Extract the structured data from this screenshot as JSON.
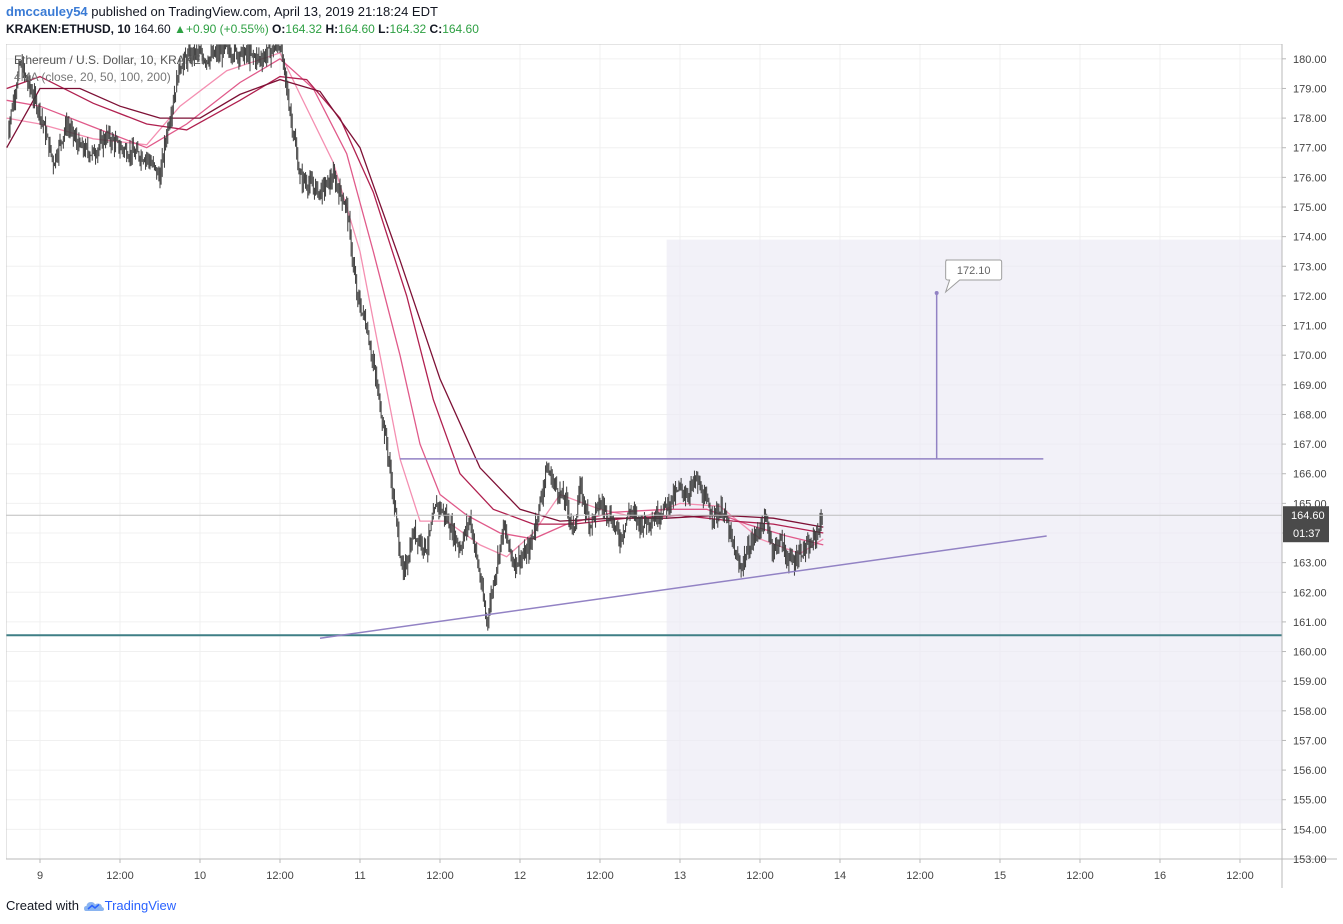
{
  "header": {
    "author": "dmccauley54",
    "published": " published on TradingView.com, April 13, 2019 21:18:24 EDT"
  },
  "ohlc": {
    "symbol": "KRAKEN:ETHUSD, 10",
    "last": "164.60",
    "change": "+0.90 (+0.55%)",
    "o_label": "O:",
    "o": "164.32",
    "h_label": "H:",
    "h": "164.60",
    "l_label": "L:",
    "l": "164.32",
    "c_label": "C:",
    "c": "164.60"
  },
  "legend": {
    "title": "Ethereum / U.S. Dollar, 10, KRAKEN",
    "indicator": "4MA (close, 20, 50, 100, 200)"
  },
  "footer": {
    "created_with": "Created with",
    "brand": "TradingView"
  },
  "price_badge": {
    "price": "164.60",
    "countdown": "01:37"
  },
  "target_label": "172.10",
  "colors": {
    "candle": "#3b3b3b",
    "ma20": "#f48fb1",
    "ma50": "#e05a8a",
    "ma100": "#b0204f",
    "ma200": "#7d1035",
    "trendline": "#9282c4",
    "support": "#3f7f85",
    "zone": "#ebe9f5",
    "badge": "#4a4a4a"
  },
  "chart_data": {
    "type": "candlestick",
    "symbol": "KRAKEN:ETHUSD",
    "interval": "10",
    "y_axis": {
      "min": 153,
      "max": 180.5,
      "position": "right",
      "ticks": [
        "180.00",
        "179.00",
        "178.00",
        "177.00",
        "176.00",
        "175.00",
        "174.00",
        "173.00",
        "172.00",
        "171.00",
        "170.00",
        "169.00",
        "168.00",
        "167.00",
        "166.00",
        "165.00",
        "164.00",
        "163.00",
        "162.00",
        "161.00",
        "160.00",
        "159.00",
        "158.00",
        "157.00",
        "156.00",
        "155.00",
        "154.00",
        "153.00"
      ]
    },
    "x_axis": {
      "range_hours": [
        0,
        78.8
      ],
      "ticks": [
        {
          "label": "9",
          "h": 0
        },
        {
          "label": "12:00",
          "h": 12
        },
        {
          "label": "10",
          "h": 24
        },
        {
          "label": "12:00",
          "h": 36
        },
        {
          "label": "11",
          "h": 48
        },
        {
          "label": "12:00",
          "h": 60
        },
        {
          "label": "12",
          "h": 72
        },
        {
          "label": "12:00",
          "h": 84
        },
        {
          "label": "13",
          "h": 96
        },
        {
          "label": "12:00",
          "h": 108
        },
        {
          "label": "14",
          "h": 120
        },
        {
          "label": "12:00",
          "h": 132
        },
        {
          "label": "15",
          "h": 144
        },
        {
          "label": "12:00",
          "h": 156
        },
        {
          "label": "16",
          "h": 168
        },
        {
          "label": "12:00",
          "h": 180
        }
      ]
    },
    "price_path": [
      [
        -5,
        177.4
      ],
      [
        -3,
        179.8
      ],
      [
        0,
        178.2
      ],
      [
        2,
        176.5
      ],
      [
        4,
        177.8
      ],
      [
        6,
        177.0
      ],
      [
        8,
        176.8
      ],
      [
        10,
        177.4
      ],
      [
        12,
        177.0
      ],
      [
        14,
        176.8
      ],
      [
        16,
        176.7
      ],
      [
        18,
        176.0
      ],
      [
        19,
        177.5
      ],
      [
        21,
        179.8
      ],
      [
        23,
        180.2
      ],
      [
        25,
        180.0
      ],
      [
        28,
        180.3
      ],
      [
        33,
        180.0
      ],
      [
        36,
        180.5
      ],
      [
        39,
        176.0
      ],
      [
        42,
        175.5
      ],
      [
        44,
        176.0
      ],
      [
        46,
        175.0
      ],
      [
        47.5,
        172.0
      ],
      [
        49,
        171.0
      ],
      [
        50.5,
        169.0
      ],
      [
        52,
        167.0
      ],
      [
        53,
        165.2
      ],
      [
        54.5,
        162.5
      ],
      [
        56,
        164.0
      ],
      [
        58,
        163.5
      ],
      [
        59.5,
        165.0
      ],
      [
        61,
        164.5
      ],
      [
        63,
        163.5
      ],
      [
        64.5,
        164.5
      ],
      [
        66,
        162.5
      ],
      [
        67,
        161.0
      ],
      [
        68,
        162.3
      ],
      [
        69.5,
        164.2
      ],
      [
        71,
        163.0
      ],
      [
        72.5,
        163.2
      ],
      [
        73.5,
        163.5
      ],
      [
        75,
        165.0
      ],
      [
        76,
        166.2
      ],
      [
        77.5,
        165.5
      ],
      [
        79,
        165.0
      ],
      [
        80,
        164.0
      ],
      [
        81,
        165.5
      ],
      [
        82.5,
        164.3
      ],
      [
        84,
        165.0
      ],
      [
        85.5,
        164.6
      ],
      [
        87,
        163.8
      ],
      [
        88.5,
        164.8
      ],
      [
        90,
        164.3
      ],
      [
        92,
        164.5
      ],
      [
        93.5,
        164.8
      ],
      [
        95,
        165.2
      ],
      [
        96,
        165.5
      ],
      [
        97,
        165.3
      ],
      [
        98.5,
        165.8
      ],
      [
        99.5,
        165.2
      ],
      [
        101,
        164.6
      ],
      [
        102.5,
        164.8
      ],
      [
        104,
        163.5
      ],
      [
        105,
        162.8
      ],
      [
        106.5,
        163.6
      ],
      [
        108,
        164.2
      ],
      [
        109,
        164.4
      ],
      [
        110,
        163.4
      ],
      [
        111,
        163.8
      ],
      [
        112,
        163.2
      ],
      [
        113,
        163.0
      ],
      [
        114,
        163.4
      ],
      [
        115.5,
        163.5
      ],
      [
        116.5,
        164.0
      ],
      [
        117.5,
        164.6
      ]
    ],
    "series": [
      {
        "name": "MA 20",
        "color_key": "ma20",
        "values": [
          [
            -5,
            178.0
          ],
          [
            0,
            177.8
          ],
          [
            8,
            177.3
          ],
          [
            16,
            177.1
          ],
          [
            21,
            178.4
          ],
          [
            28,
            179.6
          ],
          [
            36,
            180.2
          ],
          [
            39,
            178.8
          ],
          [
            44,
            176.5
          ],
          [
            48,
            173.5
          ],
          [
            51,
            170.0
          ],
          [
            54,
            166.5
          ],
          [
            57,
            164.4
          ],
          [
            61,
            164.4
          ],
          [
            66,
            163.6
          ],
          [
            70,
            163.2
          ],
          [
            74,
            164.0
          ],
          [
            78,
            165.3
          ],
          [
            84,
            164.8
          ],
          [
            90,
            164.5
          ],
          [
            96,
            165.0
          ],
          [
            102,
            164.9
          ],
          [
            108,
            163.8
          ],
          [
            114,
            163.3
          ],
          [
            117.5,
            163.8
          ]
        ]
      },
      {
        "name": "MA 50",
        "color_key": "ma50",
        "values": [
          [
            -5,
            178.6
          ],
          [
            0,
            178.4
          ],
          [
            8,
            177.7
          ],
          [
            16,
            177.0
          ],
          [
            22,
            177.8
          ],
          [
            30,
            179.2
          ],
          [
            36,
            180.0
          ],
          [
            41,
            179.0
          ],
          [
            46,
            176.8
          ],
          [
            50,
            173.5
          ],
          [
            54,
            170.0
          ],
          [
            57,
            167.0
          ],
          [
            60,
            165.3
          ],
          [
            64,
            164.6
          ],
          [
            69,
            164.0
          ],
          [
            74,
            163.8
          ],
          [
            79,
            164.3
          ],
          [
            86,
            164.7
          ],
          [
            94,
            164.8
          ],
          [
            100,
            164.8
          ],
          [
            106,
            164.3
          ],
          [
            112,
            163.9
          ],
          [
            117.5,
            163.6
          ]
        ]
      },
      {
        "name": "MA 100",
        "color_key": "ma100",
        "values": [
          [
            -5,
            179.0
          ],
          [
            0,
            179.4
          ],
          [
            8,
            178.5
          ],
          [
            16,
            177.8
          ],
          [
            22,
            177.6
          ],
          [
            30,
            178.6
          ],
          [
            36,
            179.4
          ],
          [
            40,
            179.3
          ],
          [
            45,
            178.0
          ],
          [
            50,
            175.5
          ],
          [
            55,
            172.0
          ],
          [
            59,
            168.5
          ],
          [
            63,
            166.0
          ],
          [
            68,
            164.8
          ],
          [
            74,
            164.3
          ],
          [
            80,
            164.3
          ],
          [
            88,
            164.5
          ],
          [
            96,
            164.6
          ],
          [
            104,
            164.4
          ],
          [
            110,
            164.3
          ],
          [
            117.5,
            164.0
          ]
        ]
      },
      {
        "name": "MA 200",
        "color_key": "ma200",
        "values": [
          [
            -5,
            177.0
          ],
          [
            0,
            179.0
          ],
          [
            6,
            179.0
          ],
          [
            12,
            178.4
          ],
          [
            18,
            178.0
          ],
          [
            24,
            178.0
          ],
          [
            30,
            178.8
          ],
          [
            36,
            179.3
          ],
          [
            42,
            178.9
          ],
          [
            48,
            177.0
          ],
          [
            54,
            173.2
          ],
          [
            60,
            169.2
          ],
          [
            66,
            166.2
          ],
          [
            72,
            164.8
          ],
          [
            78,
            164.4
          ],
          [
            86,
            164.5
          ],
          [
            94,
            164.5
          ],
          [
            102,
            164.6
          ],
          [
            110,
            164.5
          ],
          [
            117.5,
            164.2
          ]
        ]
      }
    ],
    "drawings": {
      "last_price": 164.6,
      "support_level": 160.55,
      "resistance_level": 166.5,
      "resistance_span_h": [
        54,
        150.5
      ],
      "trendline": [
        [
          42,
          160.45
        ],
        [
          151,
          163.9
        ]
      ],
      "target": {
        "h": 134.5,
        "from": 166.5,
        "to": 172.1
      },
      "zone": {
        "h_from": 94,
        "price_from": 154.2,
        "price_to": 173.9
      }
    }
  }
}
